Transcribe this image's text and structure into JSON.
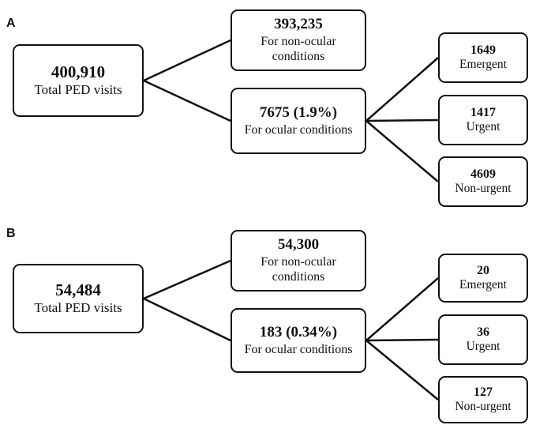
{
  "panels": [
    {
      "label": "A",
      "total": {
        "value": "400,910",
        "label": "Total PED visits"
      },
      "non_ocular": {
        "value": "393,235",
        "label": "For non-ocular conditions"
      },
      "ocular": {
        "value": "7675 (1.9%)",
        "label": "For ocular conditions"
      },
      "triage": [
        {
          "value": "1649",
          "label": "Emergent"
        },
        {
          "value": "1417",
          "label": "Urgent"
        },
        {
          "value": "4609",
          "label": "Non-urgent"
        }
      ]
    },
    {
      "label": "B",
      "total": {
        "value": "54,484",
        "label": "Total PED visits"
      },
      "non_ocular": {
        "value": "54,300",
        "label": "For non-ocular conditions"
      },
      "ocular": {
        "value": "183 (0.34%)",
        "label": "For ocular conditions"
      },
      "triage": [
        {
          "value": "20",
          "label": "Emergent"
        },
        {
          "value": "36",
          "label": "Urgent"
        },
        {
          "value": "127",
          "label": "Non-urgent"
        }
      ]
    }
  ]
}
